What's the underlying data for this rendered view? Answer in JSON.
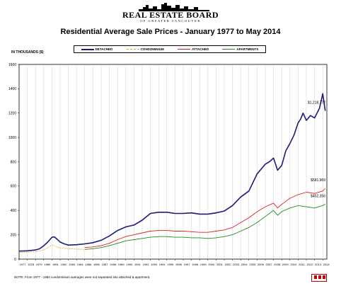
{
  "header": {
    "logo_name": "REAL ESTATE BOARD",
    "logo_sub": "OF GREATER VANCOUVER",
    "title": "Residential Average Sale Prices  -  January 1977 to May 2014",
    "units": "IN THOUSANDS ($)"
  },
  "footer": {
    "note": "NOTE:  From 1977 - 1984 condominium averages were not separated into attached & apartment."
  },
  "colors": {
    "detached": "#1a1a80",
    "condominium": "#e6a020",
    "attached": "#e02020",
    "apartments": "#1e8a1e",
    "brand": "#c00000"
  },
  "chart_data": {
    "type": "line",
    "title": "Residential Average Sale Prices  -  January 1977 to May 2014",
    "ylabel": "IN THOUSANDS ($)",
    "xlabel": "",
    "ylim": [
      0,
      1600
    ],
    "yticks": [
      0,
      200,
      400,
      600,
      800,
      1000,
      1200,
      1400,
      1600
    ],
    "grid": "vertical",
    "legend_position": "top",
    "x_tick_labels": [
      "1977",
      "1978",
      "1979",
      "1980",
      "1981",
      "1982",
      "1983",
      "1984",
      "1985",
      "1986",
      "1987",
      "1988",
      "1989",
      "1990",
      "1991",
      "1992",
      "1993",
      "1994",
      "1995",
      "1996",
      "1997",
      "1998",
      "1999",
      "2000",
      "2001",
      "2002",
      "2003",
      "2004",
      "2005",
      "2006",
      "2007",
      "2008",
      "2009",
      "2010",
      "2011",
      "2012",
      "2013",
      "2014"
    ],
    "annotations": [
      {
        "text": "$1,218,772",
        "x": 2014.3,
        "y": 1218.772,
        "series": "DETACHED"
      },
      {
        "text": "$581,969",
        "x": 2014.3,
        "y": 581.969,
        "series": "ATTACHED"
      },
      {
        "text": "$452,356",
        "x": 2014.3,
        "y": 452.356,
        "series": "APARTMENTS"
      }
    ],
    "series": [
      {
        "name": "DETACHED",
        "color": "#1a1a80",
        "x": [
          1977,
          1978,
          1979,
          1979.5,
          1980,
          1980.5,
          1981,
          1981.3,
          1981.6,
          1982,
          1982.5,
          1983,
          1984,
          1985,
          1986,
          1987,
          1988,
          1989,
          1990,
          1991,
          1992,
          1993,
          1994,
          1995,
          1996,
          1997,
          1998,
          1999,
          2000,
          2001,
          2002,
          2003,
          2004,
          2005,
          2006,
          2007,
          2007.5,
          2008,
          2008.5,
          2009,
          2009.5,
          2010,
          2010.5,
          2011,
          2011.3,
          2011.6,
          2012,
          2012.5,
          2013,
          2013.3,
          2013.6,
          2014,
          2014.3
        ],
        "y": [
          66,
          68,
          75,
          85,
          110,
          140,
          180,
          182,
          165,
          140,
          125,
          115,
          118,
          125,
          135,
          155,
          190,
          235,
          265,
          280,
          320,
          375,
          385,
          385,
          375,
          375,
          380,
          370,
          370,
          380,
          395,
          440,
          510,
          560,
          700,
          780,
          800,
          830,
          730,
          770,
          890,
          950,
          1020,
          1120,
          1150,
          1200,
          1140,
          1180,
          1160,
          1200,
          1240,
          1360,
          1219
        ]
      },
      {
        "name": "CONDOMINIUM",
        "color": "#e6a020",
        "x": [
          1977,
          1978,
          1979,
          1980,
          1980.5,
          1981,
          1981.3,
          1981.6,
          1982,
          1983,
          1984,
          1985
        ],
        "y": [
          55,
          57,
          60,
          75,
          95,
          115,
          110,
          100,
          92,
          85,
          82,
          80
        ]
      },
      {
        "name": "ATTACHED",
        "color": "#e02020",
        "x": [
          1985,
          1986,
          1987,
          1988,
          1989,
          1990,
          1991,
          1992,
          1993,
          1994,
          1995,
          1996,
          1997,
          1998,
          1999,
          2000,
          2001,
          2002,
          2003,
          2004,
          2005,
          2006,
          2007,
          2008,
          2008.5,
          2009,
          2010,
          2011,
          2012,
          2013,
          2014,
          2014.3
        ],
        "y": [
          95,
          100,
          110,
          130,
          160,
          185,
          200,
          215,
          230,
          235,
          235,
          230,
          230,
          225,
          220,
          220,
          230,
          240,
          260,
          300,
          340,
          390,
          430,
          460,
          420,
          450,
          500,
          530,
          550,
          540,
          560,
          582
        ]
      },
      {
        "name": "APARTMENTS",
        "color": "#1e8a1e",
        "x": [
          1985,
          1986,
          1987,
          1988,
          1989,
          1990,
          1991,
          1992,
          1993,
          1994,
          1995,
          1996,
          1997,
          1998,
          1999,
          2000,
          2001,
          2002,
          2003,
          2004,
          2005,
          2006,
          2007,
          2008,
          2008.5,
          2009,
          2010,
          2011,
          2012,
          2013,
          2014,
          2014.3
        ],
        "y": [
          80,
          85,
          95,
          110,
          130,
          150,
          160,
          170,
          180,
          185,
          185,
          180,
          180,
          175,
          175,
          170,
          175,
          185,
          200,
          230,
          260,
          300,
          350,
          400,
          360,
          390,
          420,
          440,
          430,
          420,
          440,
          452
        ]
      }
    ]
  }
}
